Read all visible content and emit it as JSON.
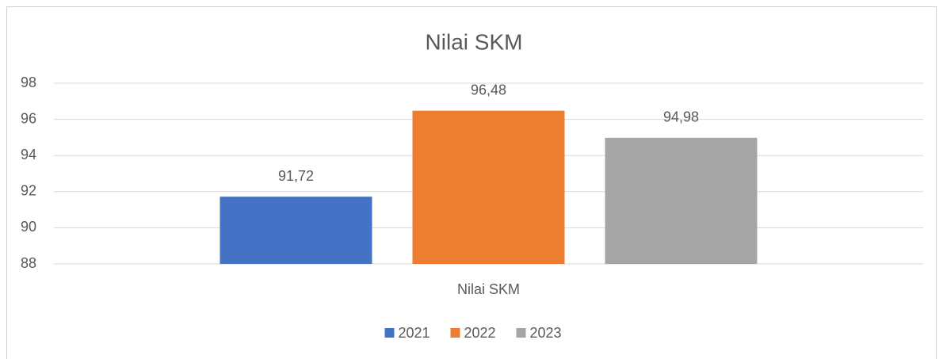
{
  "chart_data": {
    "type": "bar",
    "title": "Nilai SKM",
    "categories": [
      "Nilai SKM"
    ],
    "series": [
      {
        "name": "2021",
        "color": "#4472c4",
        "values": [
          91.72
        ],
        "value_labels": [
          "91,72"
        ]
      },
      {
        "name": "2022",
        "color": "#ed7d31",
        "values": [
          96.48
        ],
        "value_labels": [
          "96,48"
        ]
      },
      {
        "name": "2023",
        "color": "#a5a5a5",
        "values": [
          94.98
        ],
        "value_labels": [
          "94,98"
        ]
      }
    ],
    "ylim": [
      88,
      98
    ],
    "yticks": [
      88,
      90,
      92,
      94,
      96,
      98
    ],
    "grid": true,
    "legend": "bottom"
  }
}
